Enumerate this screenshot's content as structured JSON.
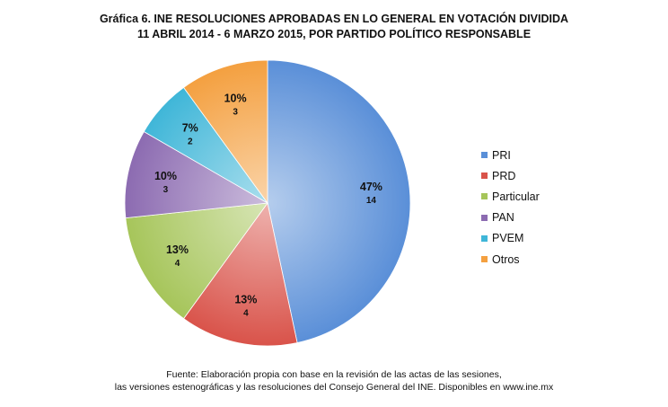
{
  "chart_data": {
    "type": "pie",
    "title": "Gráfica 6. INE RESOLUCIONES APROBADAS EN LO GENERAL EN VOTACIÓN DIVIDIDA",
    "subtitle": "11 ABRIL 2014 - 6 MARZO 2015, POR PARTIDO POLÍTICO RESPONSABLE",
    "legend_position": "right",
    "slices": [
      {
        "label": "PRI",
        "value": 14,
        "percent": "47%",
        "color": "#5a8fd8"
      },
      {
        "label": "PRD",
        "value": 4,
        "percent": "13%",
        "color": "#d9534a"
      },
      {
        "label": "Particular",
        "value": 4,
        "percent": "13%",
        "color": "#a6c55a"
      },
      {
        "label": "PAN",
        "value": 3,
        "percent": "10%",
        "color": "#8c6bb1"
      },
      {
        "label": "PVEM",
        "value": 2,
        "percent": "7%",
        "color": "#3fb6d8"
      },
      {
        "label": "Otros",
        "value": 3,
        "percent": "10%",
        "color": "#f4a040"
      }
    ]
  },
  "source": {
    "line1": "Fuente: Elaboración propia con base en la revisión de las actas de las sesiones,",
    "line2": "las versiones estenográficas y las resoluciones del Consejo General del INE. Disponibles en www.ine.mx"
  }
}
